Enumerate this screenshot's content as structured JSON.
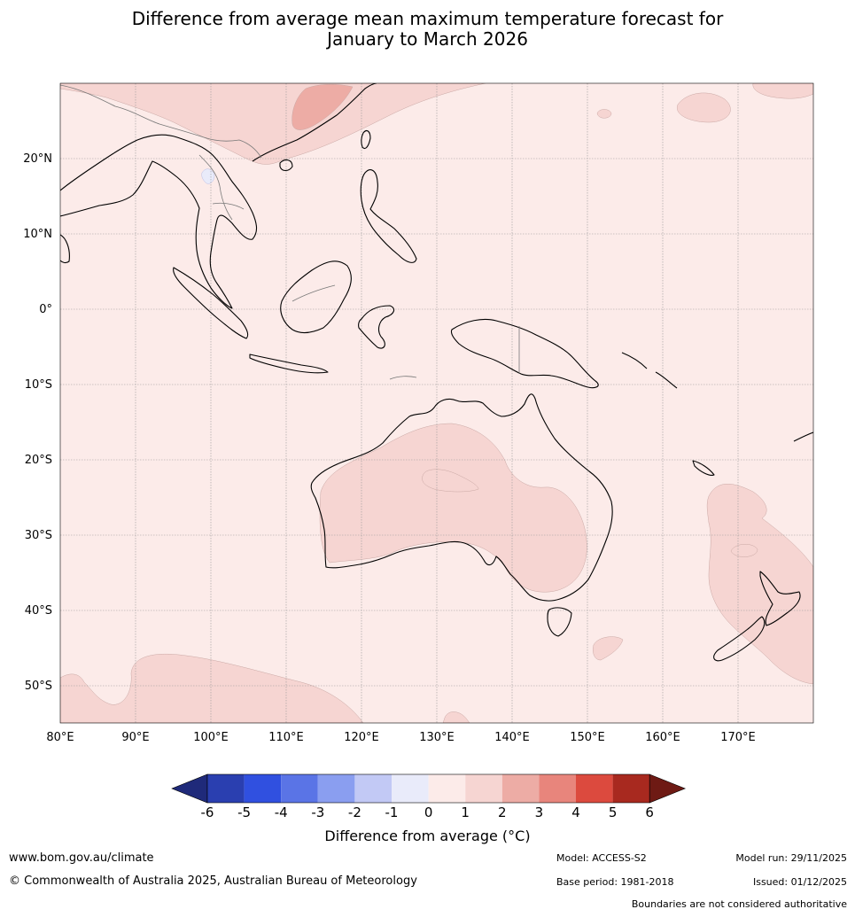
{
  "title_line1": "Difference from average mean maximum temperature forecast for",
  "title_line2": "January to March 2026",
  "map": {
    "lon_labels": [
      "80°E",
      "90°E",
      "100°E",
      "110°E",
      "120°E",
      "130°E",
      "140°E",
      "150°E",
      "160°E",
      "170°E"
    ],
    "lat_labels": [
      "20°N",
      "10°N",
      "0°",
      "10°S",
      "20°S",
      "30°S",
      "40°S",
      "50°S"
    ],
    "lon_range": [
      80,
      180
    ],
    "lat_range": [
      -55,
      30
    ]
  },
  "colorbar": {
    "ticks": [
      "-6",
      "-5",
      "-4",
      "-3",
      "-2",
      "-1",
      "0",
      "1",
      "2",
      "3",
      "4",
      "5",
      "6"
    ],
    "colors": [
      "#1f2a7a",
      "#2a3fb0",
      "#3050e0",
      "#5a74e6",
      "#8a9ef0",
      "#c2c9f5",
      "#e9ebfa",
      "#fcebe9",
      "#f6d5d2",
      "#edaca5",
      "#e8857c",
      "#dc4a3e",
      "#a8291f",
      "#6e1a14"
    ],
    "label": "Difference from average (°C)"
  },
  "footer": {
    "website": "www.bom.gov.au/climate",
    "copyright": "© Commonwealth of Australia 2025, Australian Bureau of Meteorology",
    "model": "Model: ACCESS-S2",
    "base_period": "Base period: 1981-2018",
    "model_run": "Model run: 29/11/2025",
    "issued": "Issued: 01/12/2025",
    "disclaimer": "Boundaries are not considered authoritative"
  }
}
